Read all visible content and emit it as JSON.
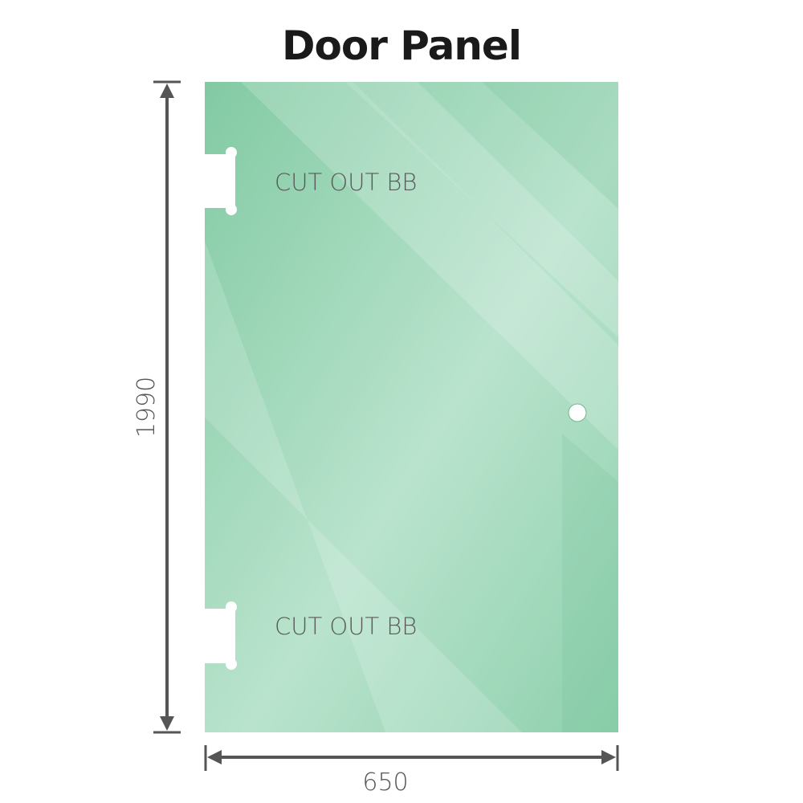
{
  "title": "Door Panel",
  "dimensions": {
    "height": "1990",
    "width": "650"
  },
  "cutouts": [
    {
      "label": "CUT OUT BB"
    },
    {
      "label": "CUT OUT BB"
    }
  ],
  "colors": {
    "glass": "#86cca6",
    "glass_light": "#bfe6d2",
    "dimension_line": "#555555",
    "text": "#555555"
  }
}
